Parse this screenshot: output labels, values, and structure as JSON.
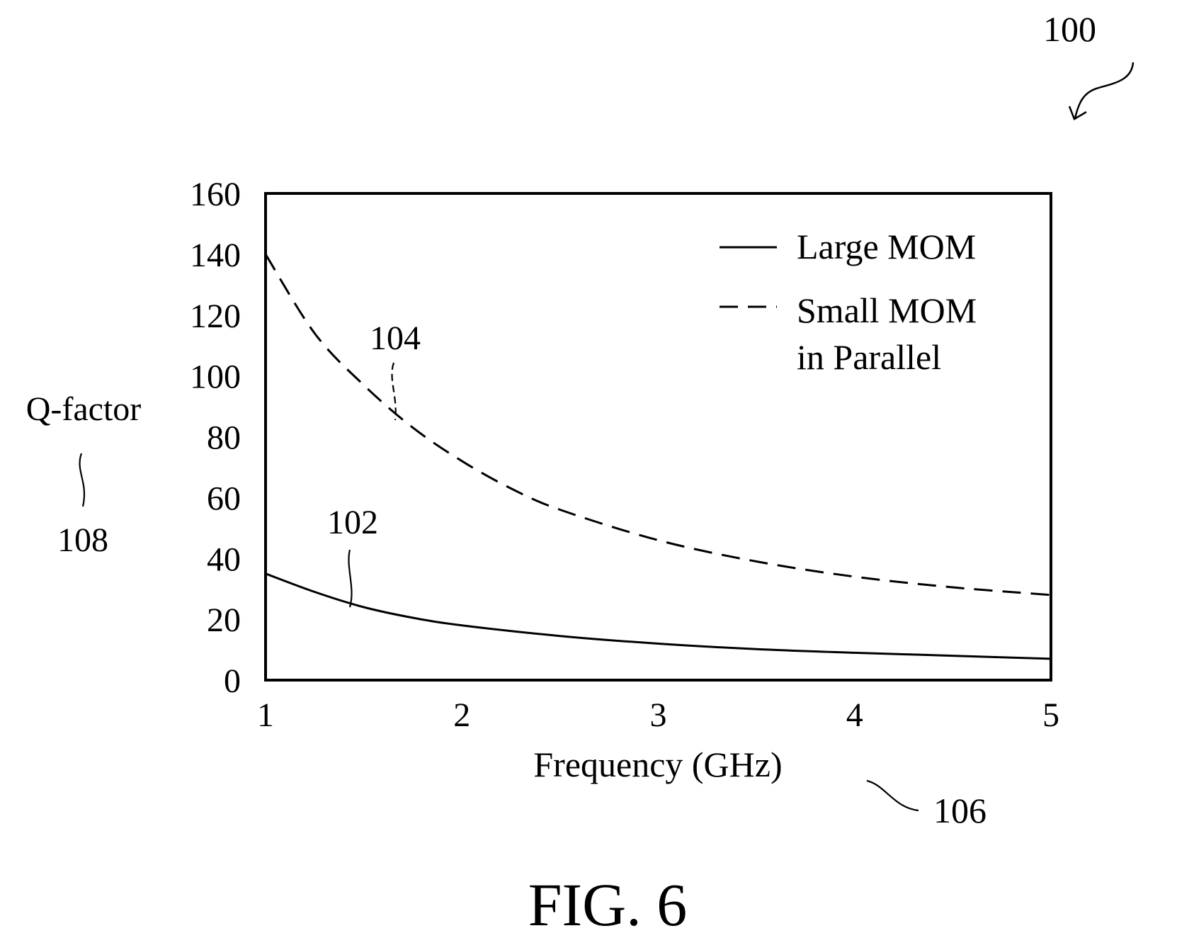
{
  "figure": {
    "ref_number": "100",
    "caption": "FIG. 6"
  },
  "chart_data": {
    "type": "line",
    "title": "",
    "xlabel": "Frequency (GHz)",
    "ylabel": "Q-factor",
    "xlim": [
      1,
      5
    ],
    "ylim": [
      0,
      160
    ],
    "xticks": [
      "1",
      "2",
      "3",
      "4",
      "5"
    ],
    "yticks": [
      "0",
      "20",
      "40",
      "60",
      "80",
      "100",
      "120",
      "140",
      "160"
    ],
    "grid": false,
    "legend_position": "top-right",
    "x_ref": "106",
    "y_ref": "108",
    "series": [
      {
        "name": "Large MOM",
        "ref": "102",
        "style": "solid",
        "color": "#000000",
        "x": [
          1.0,
          1.25,
          1.5,
          1.75,
          2.0,
          2.5,
          3.0,
          3.5,
          4.0,
          4.5,
          5.0
        ],
        "y": [
          35,
          29,
          24,
          20.5,
          18,
          14.5,
          12,
          10.2,
          9,
          8,
          7
        ]
      },
      {
        "name": "Small MOM in Parallel",
        "legend_lines": [
          "Small MOM",
          "in Parallel"
        ],
        "ref": "104",
        "style": "dashed",
        "color": "#000000",
        "x": [
          1.0,
          1.25,
          1.5,
          1.75,
          2.0,
          2.25,
          2.5,
          3.0,
          3.5,
          4.0,
          4.5,
          5.0
        ],
        "y": [
          140,
          114,
          97,
          83,
          72,
          63,
          56,
          46,
          39,
          34,
          30.5,
          28
        ]
      }
    ]
  }
}
